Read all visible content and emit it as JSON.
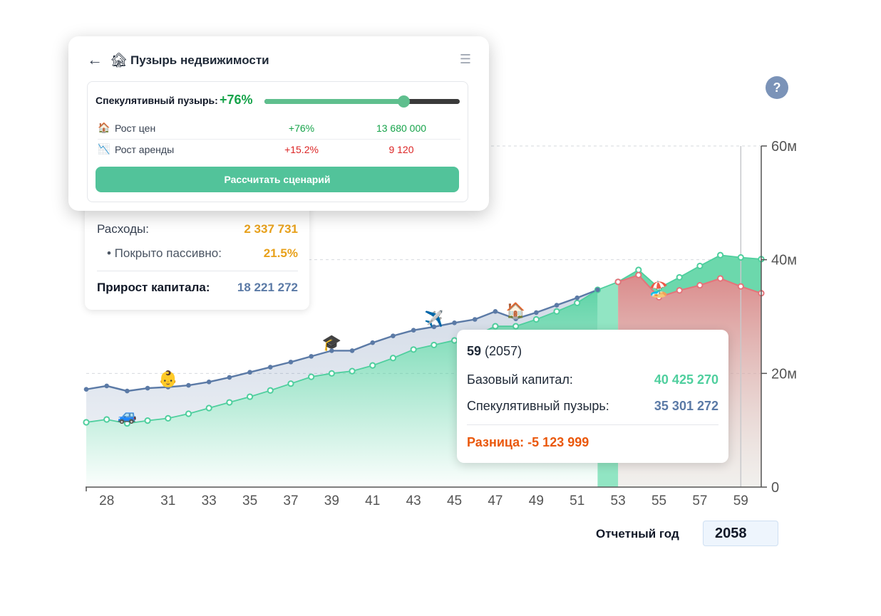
{
  "panel": {
    "back_icon": "←",
    "title_icon": "🏚",
    "title": "Пузырь недвижимости",
    "menu_icon": "☰",
    "slider_label": "Спекулятивный пузырь:",
    "slider_value": "+76%",
    "slider_fraction": 0.71,
    "metrics": [
      {
        "icon": "🏠",
        "label": "Рост цен",
        "percent": "+76%",
        "value": "13 680 000",
        "tone": "green"
      },
      {
        "icon": "📉",
        "label": "Рост аренды",
        "percent": "+15.2%",
        "value": "9 120",
        "tone": "red"
      }
    ],
    "button_label": "Рассчитать сценарий"
  },
  "help_label": "?",
  "stats": {
    "expenses_label": "Расходы:",
    "expenses_value": "2 337 731",
    "covered_label": "• Покрыто пассивно:",
    "covered_value": "21.5%",
    "growth_label": "Прирост капитала:",
    "growth_value": "18 221 272"
  },
  "tooltip": {
    "age": "59",
    "year": "(2057)",
    "base_label": "Базовый капитал:",
    "base_value": "40 425 270",
    "bubble_label": "Спекулятивный пузырь:",
    "bubble_value": "35 301 272",
    "diff_label": "Разница: -5 123 999"
  },
  "report": {
    "label": "Отчетный год",
    "value": "2058"
  },
  "colors": {
    "base": "#4fcf9e",
    "bubble": "#5b7aa6",
    "loss": "#e5737a",
    "accent": "#52c39a"
  },
  "chart_data": {
    "type": "area",
    "x_ticks": [
      "28",
      "31",
      "33",
      "35",
      "37",
      "39",
      "41",
      "43",
      "45",
      "47",
      "49",
      "51",
      "53",
      "55",
      "57",
      "59"
    ],
    "y_ticks": [
      "0",
      "20м",
      "40м",
      "60м"
    ],
    "ylim": [
      0,
      60
    ],
    "xlim": [
      27,
      60
    ],
    "ages": [
      27,
      28,
      29,
      30,
      31,
      32,
      33,
      34,
      35,
      36,
      37,
      38,
      39,
      40,
      41,
      42,
      43,
      44,
      45,
      46,
      47,
      48,
      49,
      50,
      51,
      52,
      53,
      54,
      55,
      56,
      57,
      58,
      59,
      60
    ],
    "series": [
      {
        "key": "bubble",
        "values": [
          17.2,
          17.8,
          16.9,
          17.4,
          17.6,
          17.9,
          18.5,
          19.3,
          20.2,
          21.1,
          22.0,
          23.0,
          24.0,
          24.0,
          25.4,
          26.6,
          27.6,
          28.2,
          28.9,
          29.5,
          30.9,
          29.6,
          30.7,
          32.0,
          33.3,
          34.7,
          null,
          null,
          null,
          null,
          null,
          null,
          null,
          null
        ]
      },
      {
        "key": "base",
        "values": [
          11.4,
          11.9,
          11.2,
          11.7,
          12.1,
          12.9,
          13.9,
          14.9,
          15.9,
          17.0,
          18.2,
          19.4,
          20.0,
          20.4,
          21.4,
          22.7,
          24.2,
          25.0,
          25.8,
          26.6,
          28.3,
          28.3,
          29.5,
          30.9,
          32.4,
          34.7,
          36.1,
          38.2,
          35.0,
          36.9,
          38.9,
          40.8,
          40.4,
          40.1
        ]
      },
      {
        "key": "bubble_after",
        "values": [
          null,
          null,
          null,
          null,
          null,
          null,
          null,
          null,
          null,
          null,
          null,
          null,
          null,
          null,
          null,
          null,
          null,
          null,
          null,
          null,
          null,
          null,
          null,
          null,
          null,
          null,
          36.1,
          37.3,
          33.4,
          34.6,
          35.5,
          36.7,
          35.3,
          34.1
        ]
      }
    ],
    "grid": "dashed-horizontal",
    "cursor_age": 59,
    "events": [
      {
        "age": 29,
        "icon": "🚙"
      },
      {
        "age": 31,
        "icon": "👶"
      },
      {
        "age": 39,
        "icon": "🎓"
      },
      {
        "age": 44,
        "icon": "✈️"
      },
      {
        "age": 48,
        "icon": "🏠"
      },
      {
        "age": 55,
        "icon": "🏖️"
      }
    ]
  }
}
